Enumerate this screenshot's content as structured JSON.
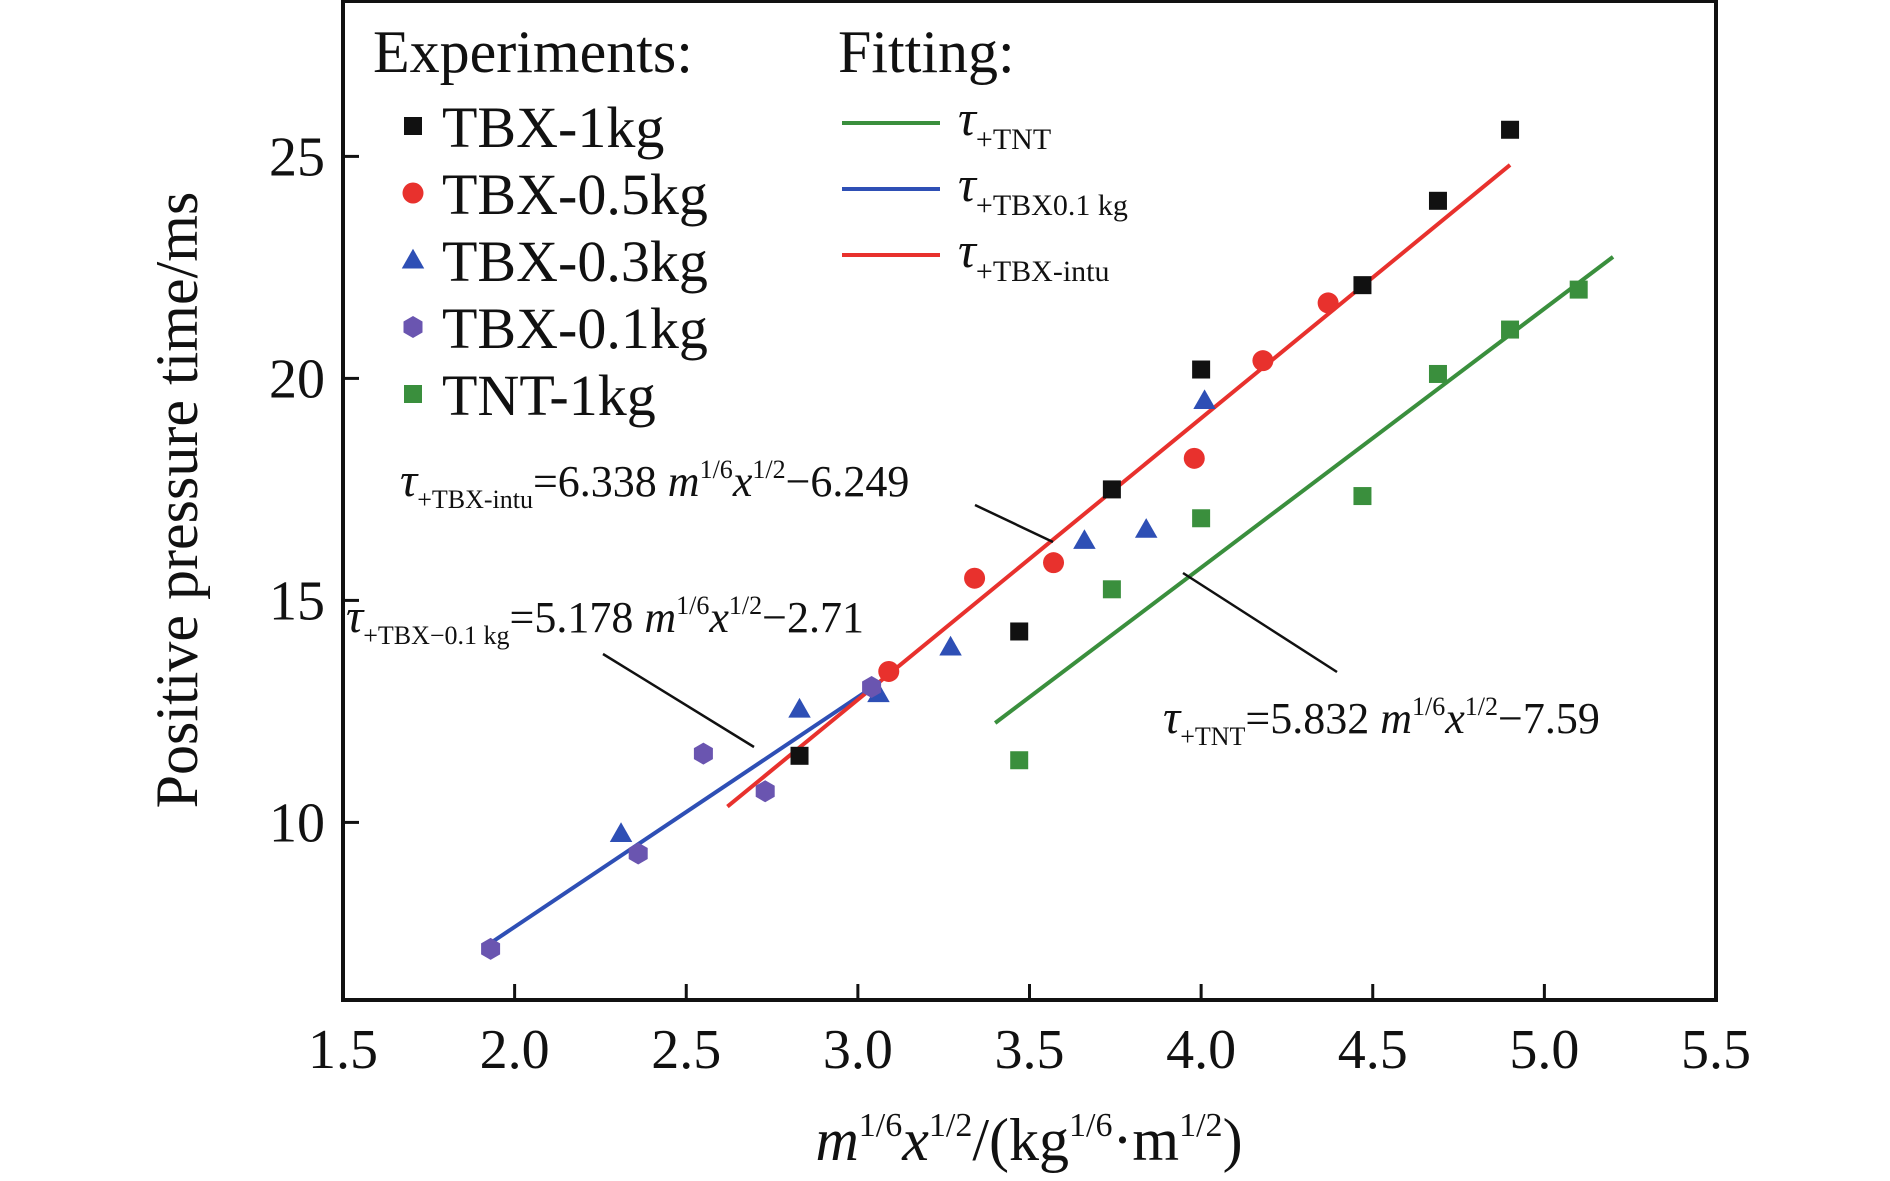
{
  "chart_data": {
    "type": "scatter",
    "xlabel": {
      "base1": "m",
      "sup1": "1/6",
      "base2": "x",
      "sup2": "1/2",
      "tail1": "/(kg",
      "sup3": "1/6",
      "tail2": "·m",
      "sup4": "1/2",
      "tail3": ")"
    },
    "ylabel": "Positive pressure time/ms",
    "xlim": [
      1.5,
      5.5
    ],
    "ylim": [
      6.0,
      28.5
    ],
    "xticks": [
      1.5,
      2.0,
      2.5,
      3.0,
      3.5,
      4.0,
      4.5,
      5.0,
      5.5
    ],
    "xtick_labels": [
      "1.5",
      "2.0",
      "2.5",
      "3.0",
      "3.5",
      "4.0",
      "4.5",
      "5.0",
      "5.5"
    ],
    "yticks": [
      10,
      15,
      20,
      25
    ],
    "ytick_labels": [
      "10",
      "15",
      "20",
      "25"
    ],
    "grid": false,
    "legend_experiments_title": "Experiments:",
    "legend_fitting_title": "Fitting:",
    "series": [
      {
        "name": "TBX-1kg",
        "marker": "square",
        "color": "#111111",
        "points": [
          [
            2.83,
            11.5
          ],
          [
            3.47,
            14.3
          ],
          [
            3.74,
            17.5
          ],
          [
            4.0,
            20.2
          ],
          [
            4.47,
            22.1
          ],
          [
            4.69,
            24.0
          ],
          [
            4.9,
            25.6
          ]
        ]
      },
      {
        "name": "TBX-0.5kg",
        "marker": "circle",
        "color": "#e8312d",
        "points": [
          [
            3.09,
            13.4
          ],
          [
            3.34,
            15.5
          ],
          [
            3.57,
            15.85
          ],
          [
            3.98,
            18.2
          ],
          [
            4.18,
            20.4
          ],
          [
            4.37,
            21.7
          ]
        ]
      },
      {
        "name": "TBX-0.3kg",
        "marker": "triangle",
        "color": "#2e4fb5",
        "points": [
          [
            2.31,
            9.75
          ],
          [
            2.83,
            12.55
          ],
          [
            3.06,
            12.9
          ],
          [
            3.27,
            13.95
          ],
          [
            3.66,
            16.35
          ],
          [
            3.84,
            16.6
          ],
          [
            4.01,
            19.5
          ]
        ]
      },
      {
        "name": "TBX-0.1kg",
        "marker": "hexagon",
        "color": "#6a55b0",
        "points": [
          [
            1.93,
            7.15
          ],
          [
            2.36,
            9.3
          ],
          [
            2.55,
            11.55
          ],
          [
            2.73,
            10.7
          ],
          [
            3.04,
            13.05
          ]
        ]
      },
      {
        "name": "TNT-1kg",
        "marker": "square",
        "color": "#3a8f3d",
        "points": [
          [
            3.47,
            11.4
          ],
          [
            3.74,
            15.25
          ],
          [
            4.0,
            16.85
          ],
          [
            4.47,
            17.35
          ],
          [
            4.69,
            20.1
          ],
          [
            4.9,
            21.1
          ],
          [
            5.1,
            22.0
          ]
        ]
      }
    ],
    "fits": [
      {
        "base": "τ",
        "sub": "+TNT",
        "color": "#3a8f3d",
        "slope": 5.832,
        "intercept": -7.59,
        "x_range": [
          3.4,
          5.2
        ]
      },
      {
        "base": "τ",
        "sub": "+TBX0.1 kg",
        "color": "#2e4fb5",
        "slope": 5.178,
        "intercept": -2.71,
        "x_range": [
          1.93,
          3.05
        ]
      },
      {
        "base": "τ",
        "sub": "+TBX-intu",
        "color": "#e8312d",
        "slope": 6.338,
        "intercept": -6.249,
        "x_range": [
          2.62,
          4.9
        ]
      }
    ],
    "annotations": [
      {
        "tau": "τ",
        "sub": "+TBX-intu",
        "coef": "=6.338 ",
        "m": "m",
        "msup": "1/6",
        "x": "x",
        "xsup": "1/2",
        "tail": "−6.249"
      },
      {
        "tau": "τ",
        "sub": "+TBX−0.1 kg",
        "coef": "=5.178 ",
        "m": "m",
        "msup": "1/6",
        "x": "x",
        "xsup": "1/2",
        "tail": "−2.71"
      },
      {
        "tau": "τ",
        "sub": "+TNT",
        "coef": "=5.832 ",
        "m": "m",
        "msup": "1/6",
        "x": "x",
        "xsup": "1/2",
        "tail": "−7.59"
      }
    ]
  }
}
